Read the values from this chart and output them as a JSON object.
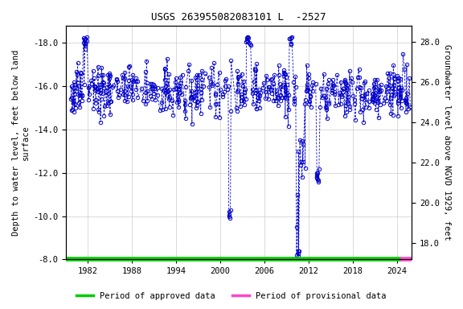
{
  "title": "USGS 263955082083101 L  -2527",
  "ylabel_left": "Depth to water level, feet below land\nsurface",
  "ylabel_right": "Groundwater level above NGVD 1929, feet",
  "xlim": [
    1979.0,
    2026.0
  ],
  "ylim_left": [
    -8.0,
    -18.8
  ],
  "ylim_right": [
    17.2,
    28.8
  ],
  "yticks_left": [
    -18.0,
    -16.0,
    -14.0,
    -12.0,
    -10.0,
    -8.0
  ],
  "yticks_right": [
    18.0,
    20.0,
    22.0,
    24.0,
    26.0,
    28.0
  ],
  "xticks": [
    1982,
    1988,
    1994,
    2000,
    2006,
    2012,
    2018,
    2024
  ],
  "line_color": "#0000cc",
  "marker_color": "#0000cc",
  "approved_color": "#00cc00",
  "provisional_color": "#ff44cc",
  "background_color": "#ffffff",
  "plot_bg_color": "#ffffff",
  "grid_color": "#cccccc",
  "approved_start": 1979.0,
  "approved_end": 2024.5,
  "provisional_start": 2024.4,
  "provisional_end": 2026.0,
  "font_size": 7.5,
  "title_font_size": 9
}
